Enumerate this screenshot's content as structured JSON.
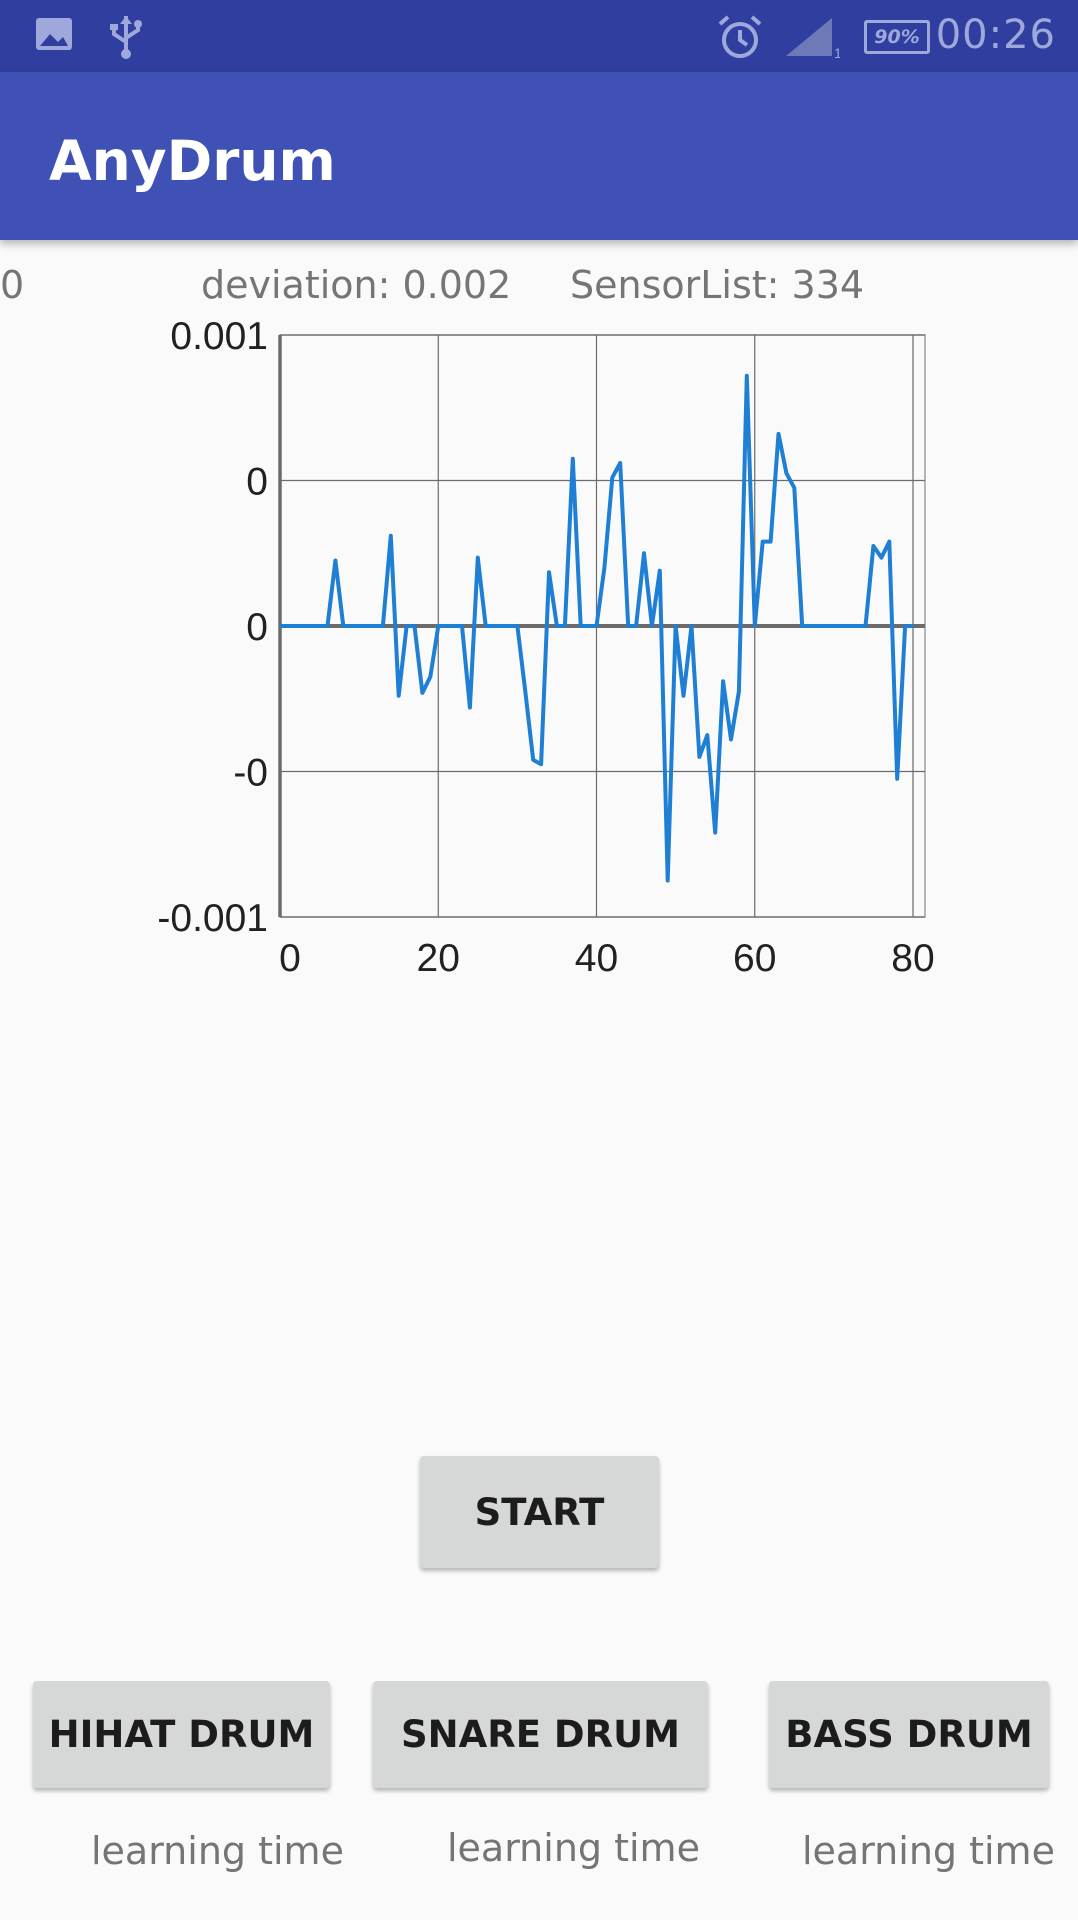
{
  "status_bar": {
    "time": "00:26",
    "battery": "90%",
    "signal_sub": "1",
    "icons": [
      "image-icon",
      "usb-icon",
      "alarm-icon",
      "signal-icon",
      "battery-icon"
    ]
  },
  "app": {
    "title": "AnyDrum",
    "brand_color": "#3f51b5",
    "status_color": "#303f9f"
  },
  "info": {
    "left_value": "0",
    "deviation": "deviation: 0.002",
    "sensor_list": "SensorList: 334"
  },
  "chart_data": {
    "type": "line",
    "x": [
      0,
      1,
      2,
      3,
      4,
      5,
      6,
      7,
      8,
      9,
      10,
      11,
      12,
      13,
      14,
      15,
      16,
      17,
      18,
      19,
      20,
      21,
      22,
      23,
      24,
      25,
      26,
      27,
      28,
      29,
      30,
      31,
      32,
      33,
      34,
      35,
      36,
      37,
      38,
      39,
      40,
      41,
      42,
      43,
      44,
      45,
      46,
      47,
      48,
      49,
      50,
      51,
      52,
      53,
      54,
      55,
      56,
      57,
      58,
      59,
      60,
      61,
      62,
      63,
      64,
      65,
      66,
      67,
      68,
      69,
      70,
      71,
      72,
      73,
      74,
      75,
      76,
      77,
      78,
      79,
      80
    ],
    "series": [
      {
        "values": [
          0,
          0,
          0,
          0,
          0,
          0,
          0,
          0.00045,
          0,
          0,
          0,
          0,
          0,
          0,
          0.00062,
          -0.00048,
          0,
          0,
          -0.00046,
          -0.00035,
          0,
          0,
          0,
          0,
          -0.00056,
          0.00047,
          0,
          0,
          0,
          0,
          0,
          -0.00045,
          -0.00092,
          -0.00095,
          0.00037,
          0,
          0,
          0.00115,
          0,
          0,
          0,
          0.0004,
          0.00102,
          0.00112,
          0,
          0,
          0.0005,
          0,
          0.00038,
          -0.00175,
          0,
          -0.00048,
          0,
          -0.0009,
          -0.00075,
          -0.00142,
          -0.00038,
          -0.00078,
          -0.00045,
          0.00172,
          0,
          0.00058,
          0.00058,
          0.00132,
          0.00105,
          0.00095,
          0,
          0,
          0,
          0,
          0,
          0,
          0,
          0,
          0,
          0.00055,
          0.00047,
          0.00058,
          -0.00105,
          0,
          0
        ]
      }
    ],
    "y_tick_labels": [
      "0.001",
      "0",
      "0",
      "-0",
      "-0.001"
    ],
    "x_tick_labels": [
      "0",
      "20",
      "40",
      "60",
      "80"
    ],
    "x_ticks": [
      0,
      20,
      40,
      60,
      80
    ],
    "xlim": [
      0,
      80
    ],
    "ylim": [
      -0.002,
      0.002
    ],
    "grid": true,
    "line_color": "#1e7fd4"
  },
  "buttons": {
    "start": "START",
    "hihat": "HIHAT DRUM",
    "snare": "SNARE DRUM",
    "bass": "BASS DRUM"
  },
  "labels": {
    "hihat_learning": "learning time",
    "snare_learning": "learning time",
    "bass_learning": "learning time"
  }
}
